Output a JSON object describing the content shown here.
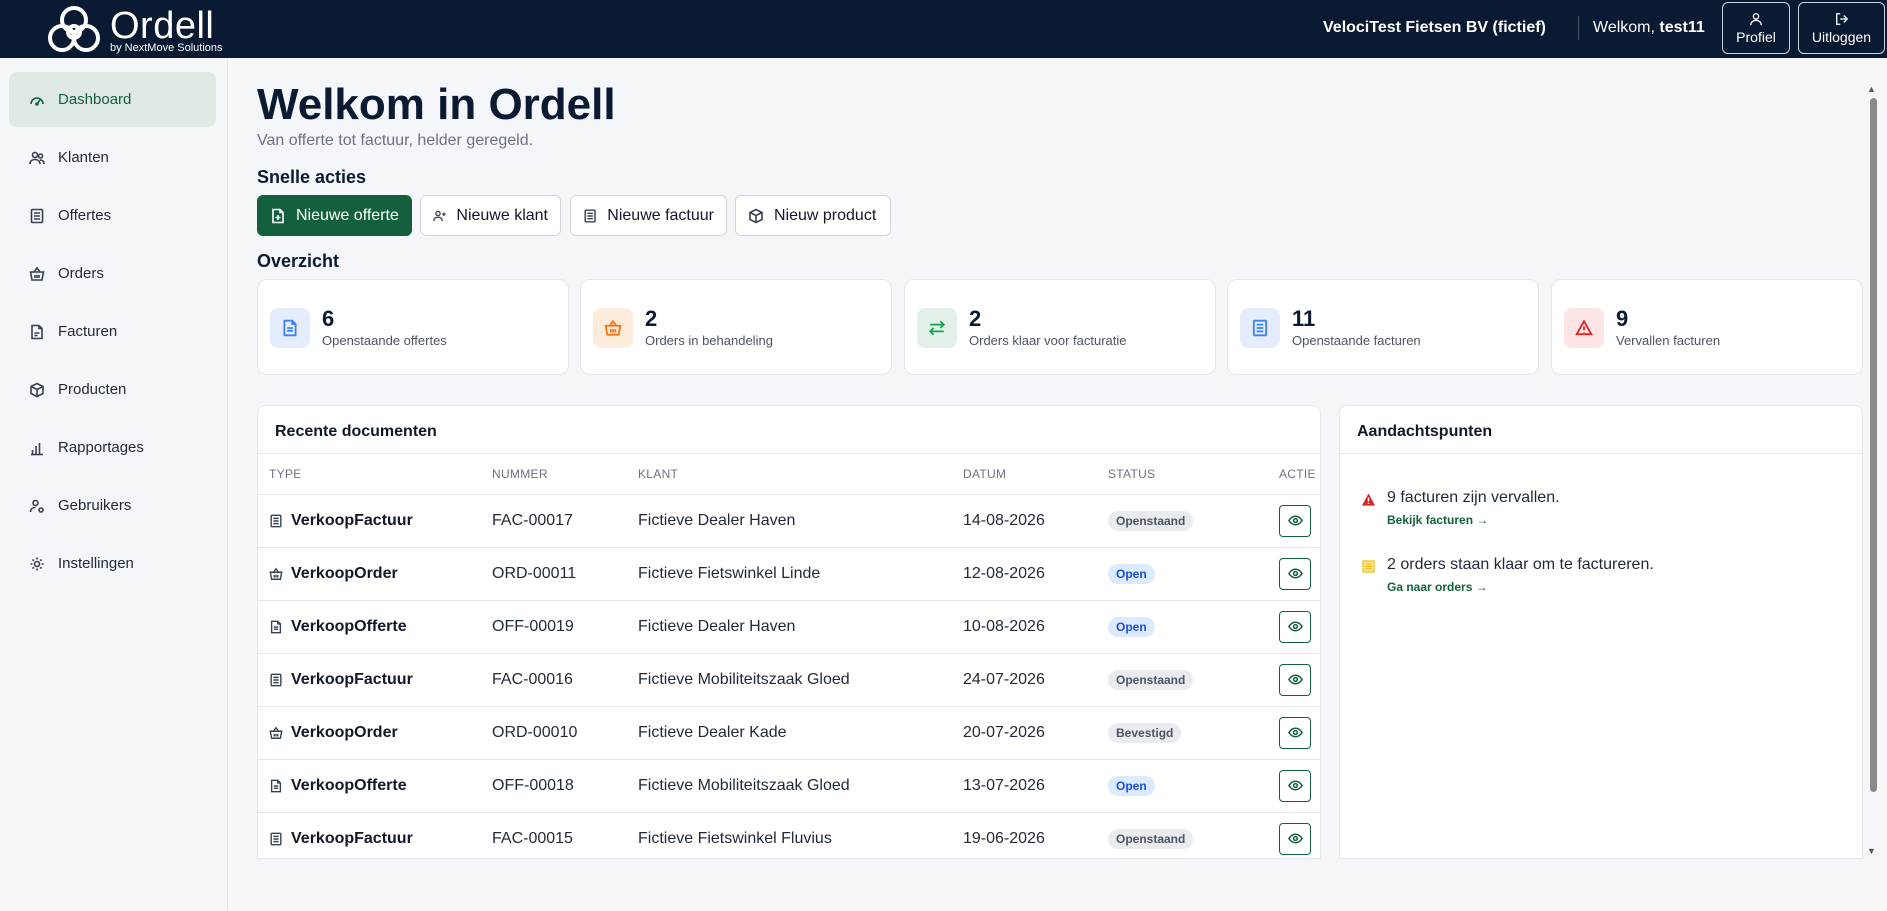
{
  "brand": {
    "name": "Ordell",
    "sub": "by NextMove Solutions"
  },
  "header": {
    "company": "VelociTest Fietsen BV (fictief)",
    "welcome_prefix": "Welkom, ",
    "username": "test11",
    "profile_label": "Profiel",
    "logout_label": "Uitloggen"
  },
  "sidebar": {
    "items": [
      {
        "label": "Dashboard",
        "icon": "gauge-icon",
        "active": true
      },
      {
        "label": "Klanten",
        "icon": "users-icon"
      },
      {
        "label": "Offertes",
        "icon": "list-document-icon"
      },
      {
        "label": "Orders",
        "icon": "basket-icon"
      },
      {
        "label": "Facturen",
        "icon": "file-icon"
      },
      {
        "label": "Producten",
        "icon": "box-icon"
      },
      {
        "label": "Rapportages",
        "icon": "bar-chart-icon"
      },
      {
        "label": "Gebruikers",
        "icon": "user-gear-icon"
      },
      {
        "label": "Instellingen",
        "icon": "gear-icon"
      }
    ]
  },
  "main": {
    "title": "Welkom in Ordell",
    "subtitle": "Van offerte tot factuur, helder geregeld.",
    "quick_actions_title": "Snelle acties",
    "quick_actions": [
      {
        "label": "Nieuwe offerte",
        "icon": "file-plus-icon",
        "primary": true
      },
      {
        "label": "Nieuwe klant",
        "icon": "user-plus-icon"
      },
      {
        "label": "Nieuwe factuur",
        "icon": "list-document-icon"
      },
      {
        "label": "Nieuw product",
        "icon": "box-icon"
      }
    ],
    "overview_title": "Overzicht",
    "stats": [
      {
        "value": "6",
        "label": "Openstaande offertes",
        "icon": "document-icon",
        "color": "#3b82f6",
        "bg": "#e4ecfd"
      },
      {
        "value": "2",
        "label": "Orders in behandeling",
        "icon": "basket-icon",
        "color": "#f97316",
        "bg": "#fdebdc"
      },
      {
        "value": "2",
        "label": "Orders klaar voor facturatie",
        "icon": "arrows-exchange-icon",
        "color": "#16a34a",
        "bg": "#e3f0e8"
      },
      {
        "value": "11",
        "label": "Openstaande facturen",
        "icon": "list-document-icon",
        "color": "#3b82f6",
        "bg": "#e4ecfd"
      },
      {
        "value": "9",
        "label": "Vervallen facturen",
        "icon": "warning-icon",
        "color": "#dc2626",
        "bg": "#fde4e4"
      }
    ],
    "recent": {
      "title": "Recente documenten",
      "columns": [
        "Type",
        "Nummer",
        "Klant",
        "Datum",
        "Status",
        "Actie"
      ],
      "rows": [
        {
          "type": "VerkoopFactuur",
          "icon": "list-document-icon",
          "nummer": "FAC-00017",
          "klant": "Fictieve Dealer Haven",
          "datum": "14-08-2026",
          "status": "Openstaand",
          "status_style": "gray"
        },
        {
          "type": "VerkoopOrder",
          "icon": "basket-icon",
          "nummer": "ORD-00011",
          "klant": "Fictieve Fietswinkel Linde",
          "datum": "12-08-2026",
          "status": "Open",
          "status_style": "blue"
        },
        {
          "type": "VerkoopOfferte",
          "icon": "document-icon",
          "nummer": "OFF-00019",
          "klant": "Fictieve Dealer Haven",
          "datum": "10-08-2026",
          "status": "Open",
          "status_style": "blue"
        },
        {
          "type": "VerkoopFactuur",
          "icon": "list-document-icon",
          "nummer": "FAC-00016",
          "klant": "Fictieve Mobiliteitszaak Gloed",
          "datum": "24-07-2026",
          "status": "Openstaand",
          "status_style": "gray"
        },
        {
          "type": "VerkoopOrder",
          "icon": "basket-icon",
          "nummer": "ORD-00010",
          "klant": "Fictieve Dealer Kade",
          "datum": "20-07-2026",
          "status": "Bevestigd",
          "status_style": "gray"
        },
        {
          "type": "VerkoopOfferte",
          "icon": "document-icon",
          "nummer": "OFF-00018",
          "klant": "Fictieve Mobiliteitszaak Gloed",
          "datum": "13-07-2026",
          "status": "Open",
          "status_style": "blue"
        },
        {
          "type": "VerkoopFactuur",
          "icon": "list-document-icon",
          "nummer": "FAC-00015",
          "klant": "Fictieve Fietswinkel Fluvius",
          "datum": "19-06-2026",
          "status": "Openstaand",
          "status_style": "gray"
        }
      ]
    },
    "attention": {
      "title": "Aandachtspunten",
      "items": [
        {
          "text": "9 facturen zijn vervallen.",
          "link": "Bekijk facturen",
          "icon": "warning-triangle-icon",
          "color": "#dc2626"
        },
        {
          "text": "2 orders staan klaar om te factureren.",
          "link": "Ga naar orders",
          "icon": "note-icon",
          "color": "#eab308"
        }
      ]
    }
  }
}
